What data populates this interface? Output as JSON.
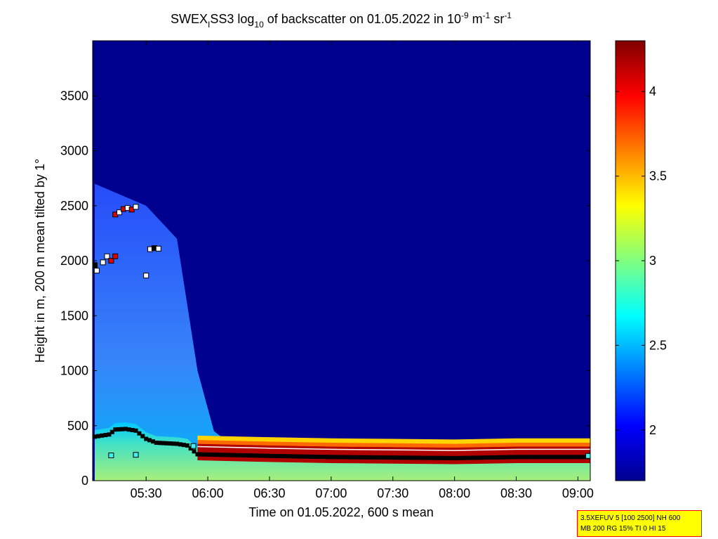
{
  "chart_data": {
    "type": "heatmap",
    "title_parts": {
      "station": "SWEX",
      "station_sub": "I",
      "mid": "SS3 log",
      "log_sub": "10",
      "rest": " of backscatter on 01.05.2022 in 10",
      "exp1": "-9",
      "unit1": " m",
      "exp2": "-1",
      "unit2": " sr",
      "exp3": "-1"
    },
    "xlabel": "Time on 01.05.2022, 600 s mean",
    "ylabel": "Height in m, 200 m mean tilted by 1°",
    "x_range": [
      "05:04",
      "09:06"
    ],
    "ylim": [
      0,
      4000
    ],
    "x_ticks": [
      "05:30",
      "06:00",
      "06:30",
      "07:00",
      "07:30",
      "08:00",
      "08:30",
      "09:00"
    ],
    "y_ticks": [
      "0",
      "500",
      "1000",
      "1500",
      "2000",
      "2500",
      "3000",
      "3500"
    ],
    "colorbar": {
      "range": [
        1.7,
        4.3
      ],
      "ticks": [
        "2",
        "2.5",
        "3",
        "3.5",
        "4"
      ],
      "colormap": "jet"
    },
    "colors": {
      "background_field": "#00008f",
      "low": "#00008f",
      "high": "#800000"
    },
    "layers": {
      "aerosol_layer_top_m": [
        {
          "t": "05:05",
          "h": 2700
        },
        {
          "t": "05:30",
          "h": 2500
        },
        {
          "t": "05:45",
          "h": 2200
        },
        {
          "t": "05:55",
          "h": 1000
        },
        {
          "t": "06:03",
          "h": 450
        },
        {
          "t": "06:10",
          "h": 350
        },
        {
          "t": "09:06",
          "h": 330
        }
      ],
      "black_markers_m": [
        {
          "t": "05:05",
          "h": 400
        },
        {
          "t": "05:12",
          "h": 420
        },
        {
          "t": "05:15",
          "h": 465
        },
        {
          "t": "05:20",
          "h": 470
        },
        {
          "t": "05:25",
          "h": 455
        },
        {
          "t": "05:30",
          "h": 380
        },
        {
          "t": "05:35",
          "h": 345
        },
        {
          "t": "05:40",
          "h": 340
        },
        {
          "t": "05:45",
          "h": 335
        },
        {
          "t": "05:50",
          "h": 320
        },
        {
          "t": "05:55",
          "h": 240
        },
        {
          "t": "06:30",
          "h": 225
        },
        {
          "t": "07:00",
          "h": 215
        },
        {
          "t": "07:30",
          "h": 210
        },
        {
          "t": "08:00",
          "h": 205
        },
        {
          "t": "08:30",
          "h": 215
        },
        {
          "t": "09:06",
          "h": 215
        }
      ],
      "square_markers": [
        {
          "t": "05:05",
          "h": 1960,
          "kind": "black"
        },
        {
          "t": "05:06",
          "h": 1910,
          "kind": "white"
        },
        {
          "t": "05:09",
          "h": 1985,
          "kind": "white"
        },
        {
          "t": "05:11",
          "h": 2040,
          "kind": "white"
        },
        {
          "t": "05:13",
          "h": 2000,
          "kind": "red"
        },
        {
          "t": "05:15",
          "h": 2040,
          "kind": "red"
        },
        {
          "t": "05:15",
          "h": 2420,
          "kind": "red"
        },
        {
          "t": "05:17",
          "h": 2440,
          "kind": "white"
        },
        {
          "t": "05:19",
          "h": 2470,
          "kind": "red"
        },
        {
          "t": "05:21",
          "h": 2480,
          "kind": "white"
        },
        {
          "t": "05:23",
          "h": 2465,
          "kind": "red"
        },
        {
          "t": "05:25",
          "h": 2490,
          "kind": "white"
        },
        {
          "t": "05:30",
          "h": 1865,
          "kind": "white"
        },
        {
          "t": "05:32",
          "h": 2105,
          "kind": "white"
        },
        {
          "t": "05:34",
          "h": 2115,
          "kind": "black"
        },
        {
          "t": "05:36",
          "h": 2110,
          "kind": "white"
        },
        {
          "t": "05:13",
          "h": 230,
          "kind": "cyan"
        },
        {
          "t": "05:25",
          "h": 235,
          "kind": "cyan"
        },
        {
          "t": "05:53",
          "h": 315,
          "kind": "cyan"
        },
        {
          "t": "09:05",
          "h": 225,
          "kind": "cyan"
        }
      ]
    }
  },
  "info_box": {
    "line1": "3.5XEFUV 5 [100 2500] NH 600",
    "line2": "MB 200 RG 15% TI 0 HI 15"
  }
}
